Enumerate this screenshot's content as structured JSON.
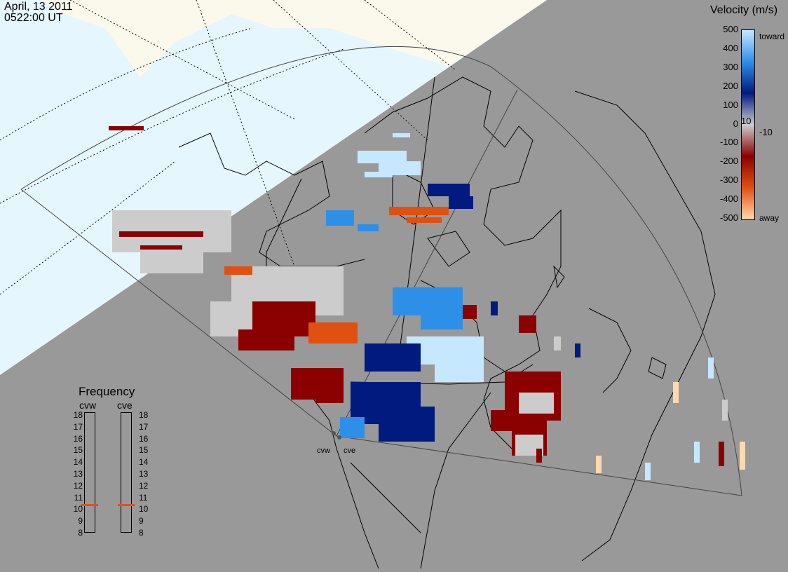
{
  "header": {
    "date": "April, 13 2011",
    "time": "0522:00 UT"
  },
  "legend": {
    "title": "Velocity (m/s)",
    "ticks": [
      "500",
      "400",
      "300",
      "200",
      "100",
      "10",
      "0",
      "-10",
      "-100",
      "-200",
      "-300",
      "-400",
      "-500"
    ],
    "toward_label": "toward",
    "away_label": "away",
    "colors": {
      "toward_light": "#c6e8ff",
      "toward_mid": "#2e8fe8",
      "toward_dark": "#001a80",
      "gray": "#cccccc",
      "away_dark": "#8b0000",
      "away_mid": "#e05010",
      "away_light": "#ffd8b0"
    }
  },
  "frequency": {
    "title": "Frequency",
    "radars": [
      {
        "name": "cvw",
        "selected_mhz": 11
      },
      {
        "name": "cve",
        "selected_mhz": 11
      }
    ],
    "scale": [
      "18",
      "17",
      "16",
      "15",
      "14",
      "13",
      "12",
      "11",
      "10",
      "9",
      "8"
    ],
    "marker_color": "#e0501a"
  },
  "sites": [
    {
      "name": "cvw"
    },
    {
      "name": "cve"
    }
  ],
  "colors": {
    "land_day": "#fbf9ec",
    "sea_day": "#e6f6ff",
    "night": "#999999"
  }
}
